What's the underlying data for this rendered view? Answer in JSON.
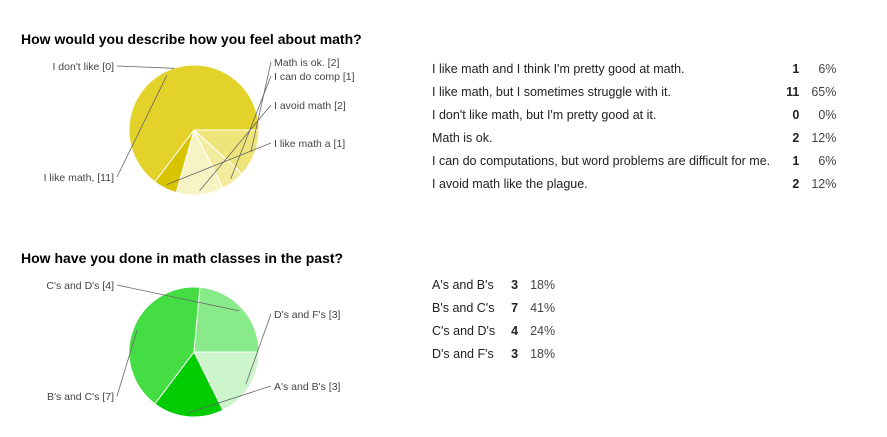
{
  "chart_data": [
    {
      "type": "pie",
      "title": "How would you describe how you feel about math?",
      "slices": [
        {
          "label": "Math is ok.",
          "value": 2,
          "color": "#efe47a"
        },
        {
          "label": "I can do comp",
          "value": 1,
          "color": "#f3ec9e"
        },
        {
          "label": "I avoid math",
          "value": 2,
          "color": "#f7f3c4"
        },
        {
          "label": "I like math a",
          "value": 1,
          "color": "#d9c400"
        },
        {
          "label": "I like math,",
          "value": 11,
          "color": "#e2d22a"
        },
        {
          "label": "I don't like",
          "value": 0,
          "color": "#e8da55"
        }
      ],
      "slice_labels": [
        "Math is ok. [2]",
        "I can do comp [1]",
        "I avoid math  [2]",
        "I like math a [1]",
        "I like math, [11]",
        "I don't like  [0]"
      ],
      "table": [
        {
          "answer": "I like math and I think I'm pretty good at math.",
          "count": "1",
          "percent": "6%"
        },
        {
          "answer": "I like math, but I sometimes struggle with it.",
          "count": "11",
          "percent": "65%"
        },
        {
          "answer": "I don't like math, but I'm pretty good at it.",
          "count": "0",
          "percent": "0%"
        },
        {
          "answer": "Math is ok.",
          "count": "2",
          "percent": "12%"
        },
        {
          "answer": "I can do computations, but word problems are difficult for me.",
          "count": "1",
          "percent": "6%"
        },
        {
          "answer": "I avoid math like the plague.",
          "count": "2",
          "percent": "12%"
        }
      ]
    },
    {
      "type": "pie",
      "title": "How have you done in math classes in the past?",
      "slices": [
        {
          "label": "D's and F's",
          "value": 3,
          "color": "#ccf5cc"
        },
        {
          "label": "A's and B's",
          "value": 3,
          "color": "#00cc00"
        },
        {
          "label": "B's and C's",
          "value": 7,
          "color": "#44dd44"
        },
        {
          "label": "C's and D's",
          "value": 4,
          "color": "#88ea88"
        }
      ],
      "slice_labels": [
        "D's and F's [3]",
        "A's and B's [3]",
        "B's and C's [7]",
        "C's and D's [4]"
      ],
      "table": [
        {
          "answer": "A's and B's",
          "count": "3",
          "percent": "18%"
        },
        {
          "answer": "B's and C's",
          "count": "7",
          "percent": "41%"
        },
        {
          "answer": "C's and D's",
          "count": "4",
          "percent": "24%"
        },
        {
          "answer": "D's and F's",
          "count": "3",
          "percent": "18%"
        }
      ]
    }
  ]
}
